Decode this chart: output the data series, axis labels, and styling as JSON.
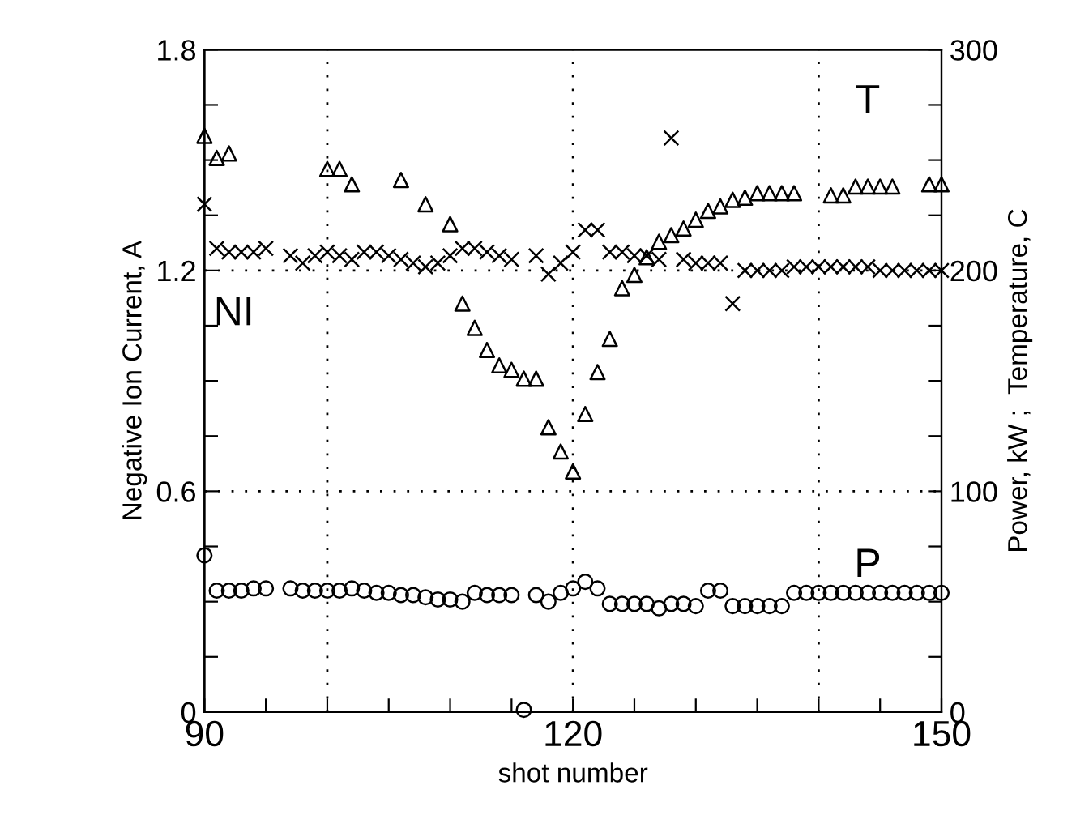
{
  "chart_data": {
    "type": "scatter",
    "xlabel": "shot number",
    "ylabel": "Negative Ion Current, A",
    "y2label": "Power, kW ;  Temperature, C",
    "xlim": [
      90,
      150
    ],
    "xticks": [
      90,
      {
        "value": 95,
        "label": null
      },
      {
        "value": 100,
        "label": null
      },
      {
        "value": 105,
        "label": null
      },
      {
        "value": 110,
        "label": null
      },
      {
        "value": 115,
        "label": null
      },
      120,
      {
        "value": 125,
        "label": null
      },
      {
        "value": 130,
        "label": null
      },
      {
        "value": 135,
        "label": null
      },
      {
        "value": 140,
        "label": null
      },
      {
        "value": 145,
        "label": null
      },
      150
    ],
    "ylim": [
      0,
      1.8
    ],
    "yticks": [
      0,
      {
        "value": 0.15,
        "label": null
      },
      {
        "value": 0.3,
        "label": null
      },
      {
        "value": 0.45,
        "label": null
      },
      0.6,
      {
        "value": 0.75,
        "label": null
      },
      {
        "value": 0.9,
        "label": null
      },
      {
        "value": 1.05,
        "label": null
      },
      1.2,
      {
        "value": 1.35,
        "label": null
      },
      {
        "value": 1.5,
        "label": null
      },
      {
        "value": 1.65,
        "label": null
      },
      1.8
    ],
    "y2lim": [
      0,
      300
    ],
    "y2ticks": [
      0,
      {
        "value": 25,
        "label": null
      },
      {
        "value": 50,
        "label": null
      },
      {
        "value": 75,
        "label": null
      },
      100,
      {
        "value": 125,
        "label": null
      },
      {
        "value": 150,
        "label": null
      },
      {
        "value": 175,
        "label": null
      },
      200,
      {
        "value": 225,
        "label": null
      },
      {
        "value": 250,
        "label": null
      },
      {
        "value": 275,
        "label": null
      },
      300
    ],
    "grid": true,
    "legend": false,
    "series": [
      {
        "name": "NI",
        "color": "#000000",
        "marker": "cross",
        "x": [
          90,
          91,
          92,
          93,
          94,
          95,
          97,
          98,
          99,
          100,
          101,
          102,
          103,
          104,
          105,
          106,
          107,
          108,
          109,
          110,
          111,
          112,
          113,
          114,
          115,
          117,
          118,
          119,
          120,
          121,
          122,
          123,
          124,
          125,
          126,
          127,
          128,
          129,
          130,
          131,
          132,
          133,
          134,
          135,
          136,
          137,
          138,
          139,
          140,
          141,
          142,
          143,
          144,
          145,
          146,
          147,
          148,
          149,
          150
        ],
        "values": [
          1.38,
          1.26,
          1.25,
          1.25,
          1.25,
          1.26,
          1.24,
          1.22,
          1.24,
          1.25,
          1.24,
          1.23,
          1.25,
          1.25,
          1.24,
          1.23,
          1.22,
          1.21,
          1.22,
          1.24,
          1.26,
          1.26,
          1.25,
          1.24,
          1.23,
          1.24,
          1.19,
          1.22,
          1.25,
          1.31,
          1.31,
          1.25,
          1.25,
          1.24,
          1.24,
          1.23,
          1.56,
          1.23,
          1.22,
          1.22,
          1.22,
          1.11,
          1.2,
          1.2,
          1.2,
          1.2,
          1.21,
          1.21,
          1.21,
          1.21,
          1.21,
          1.21,
          1.21,
          1.2,
          1.2,
          1.2,
          1.2,
          1.2,
          1.2
        ]
      },
      {
        "name": "T",
        "color": "#000000",
        "marker": "triangle",
        "axis": "y2",
        "x": [
          90,
          91,
          92,
          100,
          101,
          102,
          106,
          108,
          110,
          111,
          112,
          113,
          114,
          115,
          116,
          117,
          118,
          119,
          120,
          121,
          122,
          123,
          124,
          125,
          126,
          127,
          128,
          129,
          130,
          131,
          132,
          133,
          134,
          135,
          136,
          137,
          138,
          141,
          142,
          143,
          144,
          145,
          146,
          149,
          150
        ],
        "values": [
          261,
          251,
          253,
          246,
          246,
          239,
          241,
          230,
          221,
          185,
          174,
          164,
          157,
          155,
          151,
          151,
          129,
          118,
          109,
          135,
          154,
          169,
          192,
          198,
          206,
          213,
          216,
          219,
          223,
          227,
          229,
          232,
          233,
          235,
          235,
          235,
          235,
          234,
          234,
          238,
          238,
          238,
          238,
          239,
          239
        ]
      },
      {
        "name": "P",
        "color": "#000000",
        "marker": "circle",
        "axis": "y2",
        "x": [
          90,
          91,
          92,
          93,
          94,
          95,
          97,
          98,
          99,
          100,
          101,
          102,
          103,
          104,
          105,
          106,
          107,
          108,
          109,
          110,
          111,
          112,
          113,
          114,
          115,
          116,
          117,
          118,
          119,
          120,
          121,
          122,
          123,
          124,
          125,
          126,
          127,
          128,
          129,
          130,
          131,
          132,
          133,
          134,
          135,
          136,
          137,
          138,
          139,
          140,
          141,
          142,
          143,
          144,
          145,
          146,
          147,
          148,
          149,
          150
        ],
        "values": [
          71,
          55,
          55,
          55,
          56,
          56,
          56,
          55,
          55,
          55,
          55,
          56,
          55,
          54,
          54,
          53,
          53,
          52,
          51,
          51,
          50,
          54,
          53,
          53,
          53,
          1,
          53,
          50,
          54,
          56,
          59,
          56,
          49,
          49,
          49,
          49,
          47,
          49,
          49,
          48,
          55,
          55,
          48,
          48,
          48,
          48,
          48,
          54,
          54,
          54,
          54,
          54,
          54,
          54,
          54,
          54,
          54,
          54,
          54,
          54
        ]
      }
    ]
  }
}
